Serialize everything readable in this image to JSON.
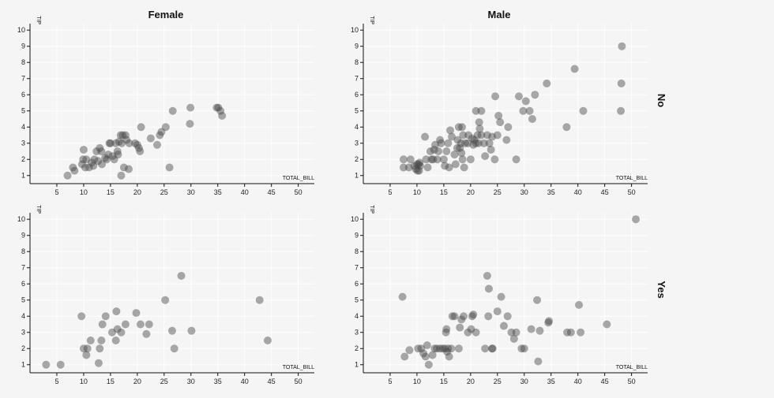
{
  "columns": [
    "Female",
    "Male"
  ],
  "rows": [
    "No",
    "Yes"
  ],
  "chart_data": [
    {
      "type": "scatter",
      "column": "Female",
      "row": "No",
      "xlabel": "TOTAL_BILL",
      "ylabel": "TIP",
      "xlim": [
        0,
        53
      ],
      "ylim": [
        0.5,
        10.4
      ],
      "xticks": [
        5,
        10,
        15,
        20,
        25,
        30,
        35,
        40,
        45,
        50
      ],
      "yticks": [
        1,
        2,
        3,
        4,
        5,
        6,
        7,
        8,
        9,
        10
      ],
      "grid": true,
      "points": [
        [
          7,
          1
        ],
        [
          8,
          1.5
        ],
        [
          8.3,
          1.3
        ],
        [
          9.7,
          1.7
        ],
        [
          9.9,
          2
        ],
        [
          10,
          2.6
        ],
        [
          10.3,
          1.5
        ],
        [
          10.5,
          2
        ],
        [
          11,
          1.5
        ],
        [
          11.5,
          1.8
        ],
        [
          11.8,
          1.6
        ],
        [
          12,
          2
        ],
        [
          12.4,
          2.5
        ],
        [
          12.7,
          1.9
        ],
        [
          13,
          2.7
        ],
        [
          13.3,
          2.5
        ],
        [
          13.4,
          1.7
        ],
        [
          14,
          2.1
        ],
        [
          14.3,
          2
        ],
        [
          14.6,
          2.3
        ],
        [
          14.8,
          3
        ],
        [
          15,
          3
        ],
        [
          15.4,
          2.2
        ],
        [
          15.7,
          2
        ],
        [
          16,
          3
        ],
        [
          16.3,
          2.5
        ],
        [
          16.4,
          2.3
        ],
        [
          16.6,
          3.1
        ],
        [
          16.9,
          3.5
        ],
        [
          17,
          1
        ],
        [
          17.1,
          3
        ],
        [
          17.3,
          3.5
        ],
        [
          17.5,
          1.5
        ],
        [
          17.8,
          3.5
        ],
        [
          18,
          3.2
        ],
        [
          18.4,
          1.4
        ],
        [
          18.5,
          3
        ],
        [
          19.6,
          3
        ],
        [
          20,
          2.9
        ],
        [
          20.3,
          2.7
        ],
        [
          20.5,
          2.5
        ],
        [
          20.7,
          4
        ],
        [
          22.5,
          3.3
        ],
        [
          23.7,
          2.9
        ],
        [
          24.2,
          3.5
        ],
        [
          24.5,
          3.7
        ],
        [
          25.3,
          4
        ],
        [
          26,
          1.5
        ],
        [
          26.6,
          5
        ],
        [
          29.8,
          4.2
        ],
        [
          29.9,
          5.2
        ],
        [
          34.8,
          5.2
        ],
        [
          35.1,
          5.2
        ],
        [
          35.5,
          5
        ],
        [
          35.8,
          4.7
        ]
      ]
    },
    {
      "type": "scatter",
      "column": "Male",
      "row": "No",
      "xlabel": "TOTAL_BILL",
      "ylabel": "TIP",
      "xlim": [
        0,
        53
      ],
      "ylim": [
        0.5,
        10.4
      ],
      "xticks": [
        5,
        10,
        15,
        20,
        25,
        30,
        35,
        40,
        45,
        50
      ],
      "yticks": [
        1,
        2,
        3,
        4,
        5,
        6,
        7,
        8,
        9,
        10
      ],
      "grid": true,
      "points": [
        [
          7.5,
          2
        ],
        [
          7.5,
          1.5
        ],
        [
          8.5,
          1.5
        ],
        [
          8.8,
          2
        ],
        [
          9.5,
          1.6
        ],
        [
          9.8,
          1.4
        ],
        [
          10,
          1.7
        ],
        [
          10.1,
          1.3
        ],
        [
          10.3,
          1.7
        ],
        [
          10.4,
          1.3
        ],
        [
          10.5,
          1.8
        ],
        [
          10.6,
          1.6
        ],
        [
          11.5,
          3.4
        ],
        [
          11.7,
          2
        ],
        [
          12,
          1.5
        ],
        [
          12.5,
          2.5
        ],
        [
          12.7,
          2
        ],
        [
          13,
          2
        ],
        [
          13.2,
          2.6
        ],
        [
          13.4,
          2.9
        ],
        [
          13.8,
          2
        ],
        [
          14,
          2.5
        ],
        [
          14.3,
          3.2
        ],
        [
          14.5,
          3
        ],
        [
          15,
          2
        ],
        [
          15.2,
          1.6
        ],
        [
          15.5,
          2.5
        ],
        [
          15.8,
          3
        ],
        [
          16,
          1.5
        ],
        [
          16.2,
          3.8
        ],
        [
          16.5,
          3.4
        ],
        [
          17,
          2.3
        ],
        [
          17.2,
          1.7
        ],
        [
          17.5,
          2.7
        ],
        [
          17.6,
          3.2
        ],
        [
          17.8,
          4
        ],
        [
          18,
          2.7
        ],
        [
          18.2,
          3
        ],
        [
          18.3,
          2.4
        ],
        [
          18.4,
          4
        ],
        [
          18.5,
          2
        ],
        [
          18.6,
          3.5
        ],
        [
          18.8,
          1.5
        ],
        [
          19,
          3
        ],
        [
          19.5,
          3
        ],
        [
          19.6,
          3.5
        ],
        [
          20,
          2
        ],
        [
          20.3,
          3.3
        ],
        [
          20.5,
          2.9
        ],
        [
          20.7,
          3.2
        ],
        [
          21,
          3
        ],
        [
          21,
          5
        ],
        [
          21.3,
          3.5
        ],
        [
          21.5,
          3
        ],
        [
          21.6,
          4.3
        ],
        [
          21.7,
          3.9
        ],
        [
          22,
          3.5
        ],
        [
          22,
          5
        ],
        [
          22.5,
          3
        ],
        [
          22.7,
          2.2
        ],
        [
          23.1,
          3.5
        ],
        [
          23.5,
          3
        ],
        [
          23.8,
          2.6
        ],
        [
          24,
          3.4
        ],
        [
          24.5,
          2
        ],
        [
          24.6,
          5.9
        ],
        [
          25,
          3.5
        ],
        [
          25.2,
          4.7
        ],
        [
          25.5,
          4.3
        ],
        [
          26.7,
          3.2
        ],
        [
          27,
          4
        ],
        [
          28.5,
          2
        ],
        [
          29,
          5.9
        ],
        [
          29.8,
          5
        ],
        [
          30.3,
          5.6
        ],
        [
          31,
          5
        ],
        [
          31.5,
          4.5
        ],
        [
          32,
          6
        ],
        [
          34.2,
          6.7
        ],
        [
          37.9,
          4
        ],
        [
          39.4,
          7.6
        ],
        [
          41,
          5
        ],
        [
          48,
          5
        ],
        [
          48.1,
          6.7
        ],
        [
          48.2,
          9
        ]
      ]
    },
    {
      "type": "scatter",
      "column": "Female",
      "row": "Yes",
      "xlabel": "TOTAL_BILL",
      "ylabel": "TIP",
      "xlim": [
        0,
        53
      ],
      "ylim": [
        0.5,
        10.4
      ],
      "xticks": [
        5,
        10,
        15,
        20,
        25,
        30,
        35,
        40,
        45,
        50
      ],
      "yticks": [
        1,
        2,
        3,
        4,
        5,
        6,
        7,
        8,
        9,
        10
      ],
      "grid": true,
      "points": [
        [
          3,
          1
        ],
        [
          5.7,
          1
        ],
        [
          9.6,
          4
        ],
        [
          10,
          2
        ],
        [
          10.5,
          1.6
        ],
        [
          10.7,
          2
        ],
        [
          11.3,
          2.5
        ],
        [
          12.8,
          1.1
        ],
        [
          13,
          2
        ],
        [
          13.3,
          2.5
        ],
        [
          13.5,
          3.5
        ],
        [
          14.1,
          4
        ],
        [
          15.3,
          3
        ],
        [
          16,
          2.5
        ],
        [
          16.1,
          4.3
        ],
        [
          16.3,
          3.2
        ],
        [
          17,
          3
        ],
        [
          17.8,
          3.5
        ],
        [
          19.8,
          4.2
        ],
        [
          20.6,
          3.5
        ],
        [
          21.7,
          2.9
        ],
        [
          22.2,
          3.5
        ],
        [
          25.2,
          5
        ],
        [
          26.5,
          3.1
        ],
        [
          26.9,
          2
        ],
        [
          28.2,
          6.5
        ],
        [
          30.1,
          3.1
        ],
        [
          42.8,
          5
        ],
        [
          44.3,
          2.5
        ]
      ]
    },
    {
      "type": "scatter",
      "column": "Male",
      "row": "Yes",
      "xlabel": "TOTAL_BILL",
      "ylabel": "TIP",
      "xlim": [
        0,
        53
      ],
      "ylim": [
        0.5,
        10.4
      ],
      "xticks": [
        5,
        10,
        15,
        20,
        25,
        30,
        35,
        40,
        45,
        50
      ],
      "yticks": [
        1,
        2,
        3,
        4,
        5,
        6,
        7,
        8,
        9,
        10
      ],
      "grid": true,
      "points": [
        [
          7.3,
          5.2
        ],
        [
          7.7,
          1.5
        ],
        [
          8.6,
          1.9
        ],
        [
          10.2,
          2
        ],
        [
          10.8,
          2
        ],
        [
          11.2,
          1.7
        ],
        [
          11.6,
          1.5
        ],
        [
          11.9,
          2.2
        ],
        [
          12.2,
          1
        ],
        [
          12.9,
          1.6
        ],
        [
          13.3,
          2
        ],
        [
          13.7,
          2
        ],
        [
          14.3,
          2
        ],
        [
          14.8,
          2
        ],
        [
          15.2,
          2
        ],
        [
          15.4,
          3
        ],
        [
          15.5,
          3.2
        ],
        [
          15.6,
          1.8
        ],
        [
          15.8,
          2
        ],
        [
          16,
          1.5
        ],
        [
          16.4,
          2
        ],
        [
          16.6,
          4
        ],
        [
          17,
          4
        ],
        [
          17.8,
          2
        ],
        [
          18,
          3.3
        ],
        [
          18.3,
          3.8
        ],
        [
          18.7,
          4
        ],
        [
          19.5,
          3
        ],
        [
          20.1,
          3.2
        ],
        [
          20.3,
          4
        ],
        [
          20.5,
          4.1
        ],
        [
          21,
          3
        ],
        [
          22.7,
          2
        ],
        [
          23.1,
          6.5
        ],
        [
          23.3,
          4
        ],
        [
          23.4,
          5.7
        ],
        [
          24,
          2
        ],
        [
          24.1,
          2
        ],
        [
          25,
          4.3
        ],
        [
          25.7,
          5.2
        ],
        [
          26.2,
          3.4
        ],
        [
          26.9,
          4
        ],
        [
          27.6,
          3
        ],
        [
          28.1,
          2.6
        ],
        [
          28.5,
          3
        ],
        [
          29.5,
          2
        ],
        [
          30,
          2
        ],
        [
          31.3,
          3.2
        ],
        [
          32.4,
          5
        ],
        [
          32.6,
          1.2
        ],
        [
          32.9,
          3.1
        ],
        [
          34.5,
          3.6
        ],
        [
          34.6,
          3.7
        ],
        [
          38,
          3
        ],
        [
          38.7,
          3
        ],
        [
          40.2,
          4.7
        ],
        [
          40.5,
          3
        ],
        [
          45.4,
          3.5
        ],
        [
          50.8,
          10
        ]
      ]
    }
  ]
}
